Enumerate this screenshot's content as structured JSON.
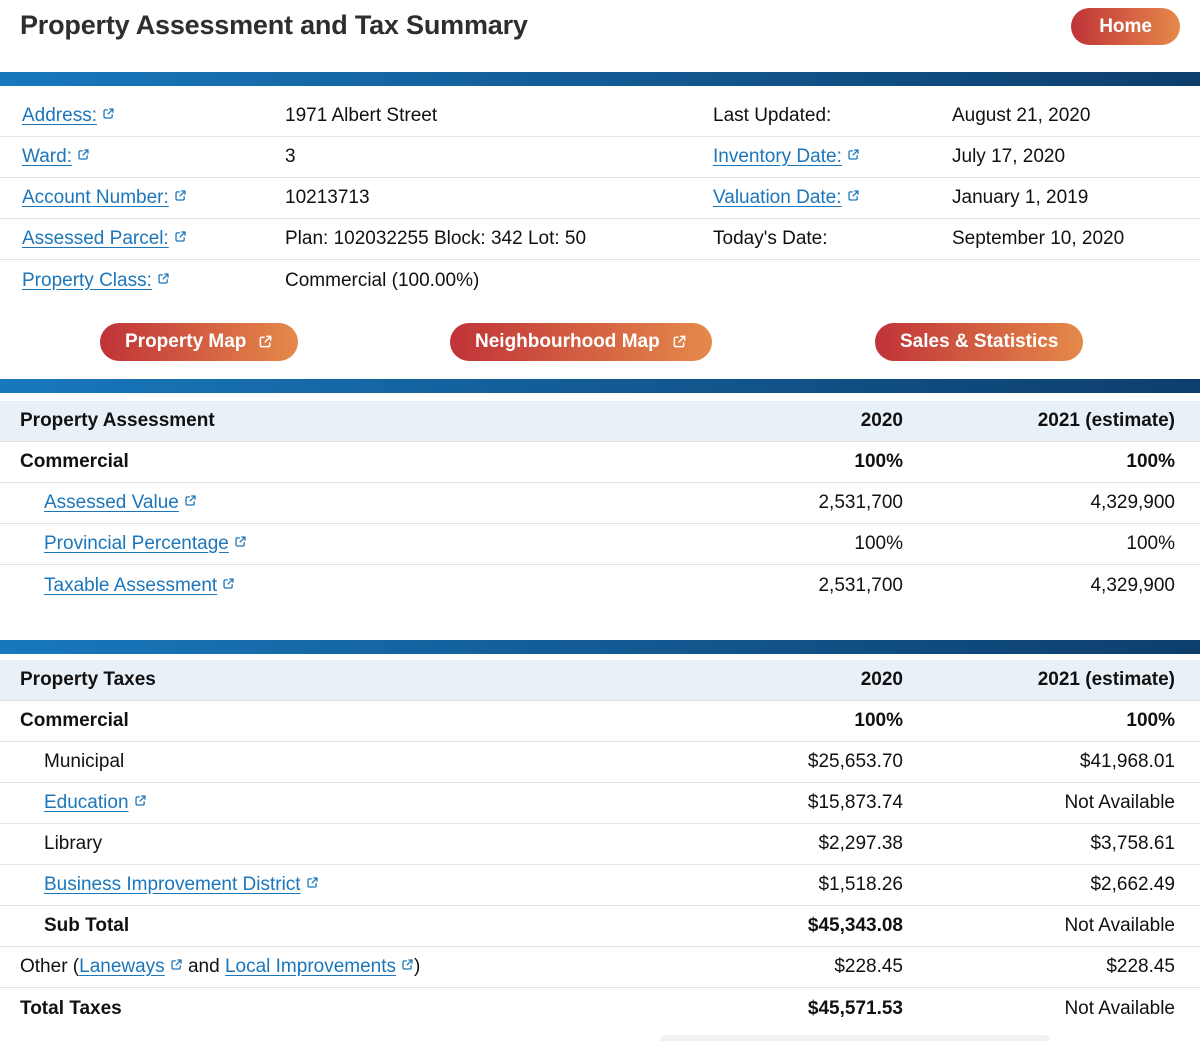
{
  "header": {
    "title": "Property Assessment and Tax Summary",
    "home_label": "Home"
  },
  "info": {
    "left": [
      {
        "label": "Address:",
        "link": true,
        "value": "1971 Albert Street"
      },
      {
        "label": "Ward:",
        "link": true,
        "value": "3"
      },
      {
        "label": "Account Number:",
        "link": true,
        "value": "10213713"
      },
      {
        "label": "Assessed Parcel:",
        "link": true,
        "value": "Plan: 102032255 Block: 342 Lot: 50"
      },
      {
        "label": "Property Class:",
        "link": true,
        "value": "Commercial (100.00%)"
      }
    ],
    "right": [
      {
        "label": "Last Updated:",
        "link": false,
        "value": "August 21, 2020"
      },
      {
        "label": "Inventory Date:",
        "link": true,
        "value": "July 17, 2020"
      },
      {
        "label": "Valuation Date:",
        "link": true,
        "value": "January 1, 2019"
      },
      {
        "label": "Today's Date:",
        "link": false,
        "value": "September 10, 2020"
      }
    ]
  },
  "action_buttons": [
    {
      "label": "Property Map",
      "external_icon": true
    },
    {
      "label": "Neighbourhood Map",
      "external_icon": true
    },
    {
      "label": "Sales & Statistics",
      "external_icon": false
    }
  ],
  "assessment_table": {
    "title": "Property Assessment",
    "col_2020": "2020",
    "col_2021": "2021 (estimate)",
    "rows": [
      {
        "label": "Commercial",
        "bold": true,
        "indent": false,
        "link": false,
        "v2020": "100%",
        "v2021": "100%",
        "v2020_bold": true,
        "v2021_bold": true
      },
      {
        "label": "Assessed Value",
        "bold": false,
        "indent": true,
        "link": true,
        "v2020": "2,531,700",
        "v2021": "4,329,900",
        "v2020_bold": false,
        "v2021_bold": false
      },
      {
        "label": "Provincial Percentage",
        "bold": false,
        "indent": true,
        "link": true,
        "v2020": "100%",
        "v2021": "100%",
        "v2020_bold": false,
        "v2021_bold": false
      },
      {
        "label": "Taxable Assessment",
        "bold": false,
        "indent": true,
        "link": true,
        "v2020": "2,531,700",
        "v2021": "4,329,900",
        "v2020_bold": false,
        "v2021_bold": false
      }
    ]
  },
  "tax_table": {
    "title": "Property Taxes",
    "col_2020": "2020",
    "col_2021": "2021 (estimate)",
    "rows": [
      {
        "label": "Commercial",
        "bold": true,
        "indent": false,
        "link": false,
        "v2020": "100%",
        "v2021": "100%",
        "v2020_bold": true,
        "v2021_bold": true
      },
      {
        "label": "Municipal",
        "bold": false,
        "indent": true,
        "link": false,
        "v2020": "$25,653.70",
        "v2021": "$41,968.01",
        "v2020_bold": false,
        "v2021_bold": false
      },
      {
        "label": "Education",
        "bold": false,
        "indent": true,
        "link": true,
        "v2020": "$15,873.74",
        "v2021": "Not Available",
        "v2020_bold": false,
        "v2021_bold": false
      },
      {
        "label": "Library",
        "bold": false,
        "indent": true,
        "link": false,
        "v2020": "$2,297.38",
        "v2021": "$3,758.61",
        "v2020_bold": false,
        "v2021_bold": false
      },
      {
        "label": "Business Improvement District",
        "bold": false,
        "indent": true,
        "link": true,
        "v2020": "$1,518.26",
        "v2021": "$2,662.49",
        "v2020_bold": false,
        "v2021_bold": false
      },
      {
        "label": "Sub Total",
        "bold": true,
        "indent": true,
        "link": false,
        "v2020": "$45,343.08",
        "v2021": "Not Available",
        "v2020_bold": true,
        "v2021_bold": false
      },
      {
        "parts": [
          {
            "text": "Other ("
          },
          {
            "text": "Laneways",
            "link": true
          },
          {
            "text": " and "
          },
          {
            "text": "Local Improvements",
            "link": true
          },
          {
            "text": ")"
          }
        ],
        "bold": false,
        "indent": false,
        "v2020": "$228.45",
        "v2021": "$228.45",
        "v2020_bold": false,
        "v2021_bold": false
      },
      {
        "label": "Total Taxes",
        "bold": true,
        "indent": false,
        "link": false,
        "v2020": "$45,571.53",
        "v2021": "Not Available",
        "v2020_bold": true,
        "v2021_bold": false
      }
    ]
  },
  "colors": {
    "link_blue": "#1b76bb",
    "bar_gradient_start": "#1878bd",
    "bar_gradient_end": "#0d3e6c",
    "button_gradient_start": "#c03338",
    "button_gradient_end": "#e5894a",
    "table_header_bg": "#e9f1f8"
  }
}
